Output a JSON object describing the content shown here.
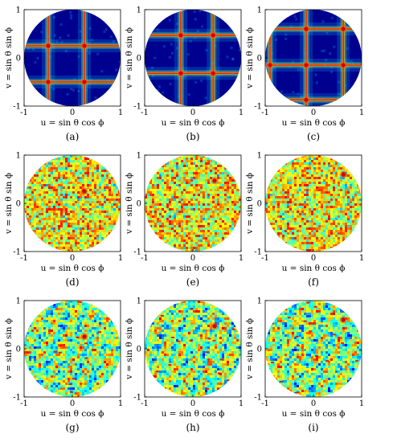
{
  "chart_data": [
    {
      "type": "heatmap",
      "panel_label": "(a)",
      "pattern": "grid",
      "xlabel": "u = sin θ cos ϕ",
      "ylabel": "v = sin θ sin ϕ",
      "xlim": [
        -1,
        1
      ],
      "ylim": [
        -1,
        1
      ],
      "x_ticks": [
        "-1",
        "0",
        "1"
      ],
      "y_ticks": [
        "1",
        "0",
        "-1"
      ],
      "peaks": [
        {
          "u": -0.5,
          "v": 0.25
        },
        {
          "u": 0.25,
          "v": 0.25
        },
        {
          "u": -0.5,
          "v": -0.5
        },
        {
          "u": 0.25,
          "v": -0.5
        }
      ]
    },
    {
      "type": "heatmap",
      "panel_label": "(b)",
      "pattern": "grid",
      "xlabel": "u = sin θ cos ϕ",
      "ylabel": "v = sin θ sin ϕ",
      "xlim": [
        -1,
        1
      ],
      "ylim": [
        -1,
        1
      ],
      "x_ticks": [
        "-1",
        "0",
        "1"
      ],
      "y_ticks": [
        "1",
        "0",
        "-1"
      ],
      "peaks": [
        {
          "u": -0.25,
          "v": 0.47
        },
        {
          "u": 0.42,
          "v": 0.47
        },
        {
          "u": -0.25,
          "v": -0.32
        },
        {
          "u": 0.42,
          "v": -0.32
        }
      ]
    },
    {
      "type": "heatmap",
      "panel_label": "(c)",
      "pattern": "grid",
      "xlabel": "u = sin θ cos ϕ",
      "ylabel": "v = sin θ sin ϕ",
      "xlim": [
        -1,
        1
      ],
      "ylim": [
        -1,
        1
      ],
      "x_ticks": [
        "-1",
        "0",
        "1"
      ],
      "y_ticks": [
        "1",
        "0",
        "-1"
      ],
      "peaks": [
        {
          "u": -0.15,
          "v": 0.6
        },
        {
          "u": 0.62,
          "v": 0.6
        },
        {
          "u": -0.9,
          "v": -0.15
        },
        {
          "u": -0.15,
          "v": -0.15
        },
        {
          "u": 0.62,
          "v": -0.15
        },
        {
          "u": -0.15,
          "v": -0.87
        }
      ]
    },
    {
      "type": "heatmap",
      "panel_label": "(d)",
      "pattern": "noise",
      "xlabel": "u = sin θ cos ϕ",
      "ylabel": "v = sin θ sin ϕ",
      "xlim": [
        -1,
        1
      ],
      "ylim": [
        -1,
        1
      ],
      "x_ticks": [
        "-1",
        "0",
        "1"
      ],
      "y_ticks": [
        "1",
        "0",
        "-1"
      ],
      "peaks": [
        {
          "u": 0.25,
          "v": 0.25
        }
      ]
    },
    {
      "type": "heatmap",
      "panel_label": "(e)",
      "pattern": "noise",
      "xlabel": "u = sin θ cos ϕ",
      "ylabel": "v = sin θ sin ϕ",
      "xlim": [
        -1,
        1
      ],
      "ylim": [
        -1,
        1
      ],
      "x_ticks": [
        "-1",
        "0",
        "1"
      ],
      "y_ticks": [
        "1",
        "0",
        "-1"
      ],
      "peaks": [
        {
          "u": 0.45,
          "v": 0.47
        }
      ]
    },
    {
      "type": "heatmap",
      "panel_label": "(f)",
      "pattern": "noise",
      "xlabel": "u = sin θ cos ϕ",
      "ylabel": "v = sin θ sin ϕ",
      "xlim": [
        -1,
        1
      ],
      "ylim": [
        -1,
        1
      ],
      "x_ticks": [
        "-1",
        "0",
        "1"
      ],
      "y_ticks": [
        "1",
        "0",
        "-1"
      ],
      "peaks": [
        {
          "u": 0.62,
          "v": 0.6
        }
      ]
    },
    {
      "type": "heatmap",
      "panel_label": "(g)",
      "pattern": "textured",
      "xlabel": "u = sin θ cos ϕ",
      "ylabel": "v = sin θ sin ϕ",
      "xlim": [
        -1,
        1
      ],
      "ylim": [
        -1,
        1
      ],
      "x_ticks": [
        "-1",
        "0",
        "1"
      ],
      "y_ticks": [
        "1",
        "0",
        "-1"
      ],
      "peaks": [
        {
          "u": 0.25,
          "v": 0.25
        }
      ]
    },
    {
      "type": "heatmap",
      "panel_label": "(h)",
      "pattern": "textured",
      "xlabel": "u = sin θ cos ϕ",
      "ylabel": "v = sin θ sin ϕ",
      "xlim": [
        -1,
        1
      ],
      "ylim": [
        -1,
        1
      ],
      "x_ticks": [
        "-1",
        "0",
        "1"
      ],
      "y_ticks": [
        "1",
        "0",
        "-1"
      ],
      "peaks": [
        {
          "u": 0.45,
          "v": 0.47
        }
      ]
    },
    {
      "type": "heatmap",
      "panel_label": "(i)",
      "pattern": "textured",
      "xlabel": "u = sin θ cos ϕ",
      "ylabel": "v = sin θ sin ϕ",
      "xlim": [
        -1,
        1
      ],
      "ylim": [
        -1,
        1
      ],
      "x_ticks": [
        "-1",
        "0",
        "1"
      ],
      "y_ticks": [
        "1",
        "0",
        "-1"
      ],
      "peaks": [
        {
          "u": 0.62,
          "v": 0.6
        }
      ]
    }
  ],
  "colors": {
    "low": "#00008f",
    "mid": "#2aa7ff",
    "high": "#ffff00",
    "peak": "#d40000",
    "axis": "#000000"
  }
}
